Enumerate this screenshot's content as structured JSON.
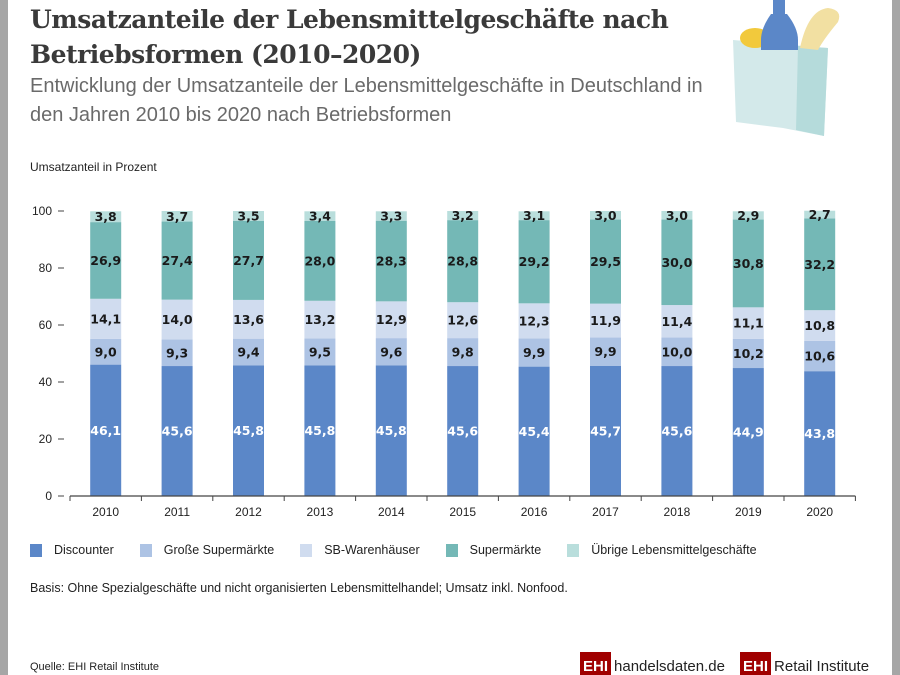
{
  "header": {
    "title": "Umsatzanteile der Lebensmittelgeschäfte nach Betriebsformen (2010–2020)",
    "subtitle": "Entwicklung der Umsatzanteile der Lebensmittelgeschäfte in Deutschland in den Jahren 2010 bis 2020 nach Betriebsformen",
    "illustration": "shopping-bag-with-groceries-icon"
  },
  "chart_data": {
    "type": "bar",
    "stacked": true,
    "ylabel": "Umsatzanteil in Prozent",
    "ylim": [
      0,
      100
    ],
    "yticks": [
      "0",
      "20",
      "40",
      "60",
      "80",
      "100"
    ],
    "categories": [
      "2010",
      "2011",
      "2012",
      "2013",
      "2014",
      "2015",
      "2016",
      "2017",
      "2018",
      "2019",
      "2020"
    ],
    "series": [
      {
        "name": "Discounter",
        "color": "#5b87c8",
        "values": [
          46.1,
          45.6,
          45.8,
          45.8,
          45.8,
          45.6,
          45.4,
          45.7,
          45.6,
          44.9,
          43.8
        ],
        "labels": [
          "46,1",
          "45,6",
          "45,8",
          "45,8",
          "45,8",
          "45,6",
          "45,4",
          "45,7",
          "45,6",
          "44,9",
          "43,8"
        ]
      },
      {
        "name": "Große Supermärkte",
        "color": "#adc3e4",
        "values": [
          9.0,
          9.3,
          9.4,
          9.5,
          9.6,
          9.8,
          9.9,
          9.9,
          10.0,
          10.2,
          10.6
        ],
        "labels": [
          "9,0",
          "9,3",
          "9,4",
          "9,5",
          "9,6",
          "9,8",
          "9,9",
          "9,9",
          "10,0",
          "10,2",
          "10,6"
        ]
      },
      {
        "name": "SB-Warenhäuser",
        "color": "#d0dcef",
        "values": [
          14.1,
          14.0,
          13.6,
          13.2,
          12.9,
          12.6,
          12.3,
          11.9,
          11.4,
          11.1,
          10.8
        ],
        "labels": [
          "14,1",
          "14,0",
          "13,6",
          "13,2",
          "12,9",
          "12,6",
          "12,3",
          "11,9",
          "11,4",
          "11,1",
          "10,8"
        ]
      },
      {
        "name": "Supermärkte",
        "color": "#74b8b6",
        "values": [
          26.9,
          27.4,
          27.7,
          28.0,
          28.3,
          28.8,
          29.2,
          29.5,
          30.0,
          30.8,
          32.2
        ],
        "labels": [
          "26,9",
          "27,4",
          "27,7",
          "28,0",
          "28,3",
          "28,8",
          "29,2",
          "29,5",
          "30,0",
          "30,8",
          "32,2"
        ]
      },
      {
        "name": "Übrige Lebensmittelgeschäfte",
        "color": "#b9dedc",
        "values": [
          3.8,
          3.7,
          3.5,
          3.4,
          3.3,
          3.2,
          3.1,
          3.0,
          3.0,
          2.9,
          2.7
        ],
        "labels": [
          "3,8",
          "3,7",
          "3,5",
          "3,4",
          "3,3",
          "3,2",
          "3,1",
          "3,0",
          "3,0",
          "2,9",
          "2,7"
        ]
      }
    ],
    "grid": false,
    "legend": "bottom"
  },
  "footer": {
    "basis": "Basis: Ohne Spezialgeschäfte und nicht organisierten Lebensmittelhandel; Umsatz inkl. Nonfood.",
    "source": "Quelle: EHI Retail Institute",
    "logo1_mark": "EHI",
    "logo1_text": "handelsdaten.de",
    "logo2_mark": "EHI",
    "logo2_text": "Retail Institute"
  }
}
